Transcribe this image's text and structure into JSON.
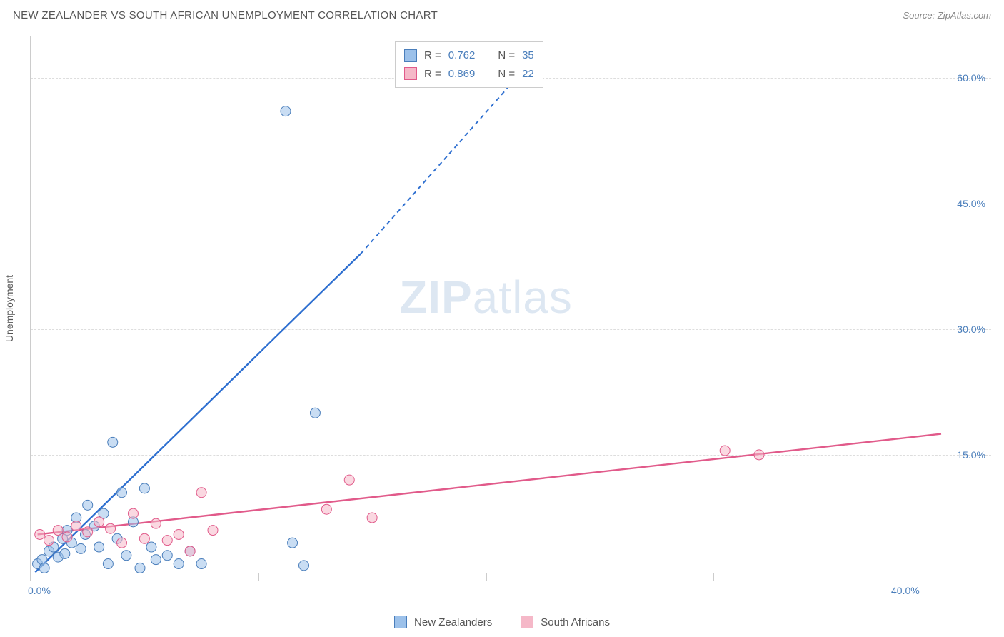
{
  "title": "NEW ZEALANDER VS SOUTH AFRICAN UNEMPLOYMENT CORRELATION CHART",
  "source": "Source: ZipAtlas.com",
  "ylabel": "Unemployment",
  "watermark_zip": "ZIP",
  "watermark_atlas": "atlas",
  "chart": {
    "type": "scatter",
    "xlim": [
      0,
      40
    ],
    "ylim": [
      0,
      65
    ],
    "x_ticks": [
      {
        "v": 0,
        "label": "0.0%"
      },
      {
        "v": 40,
        "label": "40.0%"
      }
    ],
    "y_ticks": [
      {
        "v": 15,
        "label": "15.0%"
      },
      {
        "v": 30,
        "label": "30.0%"
      },
      {
        "v": 45,
        "label": "45.0%"
      },
      {
        "v": 60,
        "label": "60.0%"
      }
    ],
    "x_grid_minor": [
      10,
      20,
      30
    ],
    "background_color": "#ffffff",
    "grid_color": "#dddddd",
    "axis_color": "#cccccc",
    "tick_label_color": "#4a7ebb",
    "marker_radius": 7,
    "marker_opacity": 0.55,
    "marker_stroke_width": 1,
    "line_width": 2.4,
    "dash_pattern": "6 5",
    "series": [
      {
        "name": "New Zealanders",
        "color_fill": "#9cc1ea",
        "color_stroke": "#4a7ebb",
        "line_color": "#2e6fd0",
        "R": "0.762",
        "N": "35",
        "points": [
          [
            0.3,
            2.0
          ],
          [
            0.5,
            2.5
          ],
          [
            0.6,
            1.5
          ],
          [
            0.8,
            3.5
          ],
          [
            1.0,
            4.0
          ],
          [
            1.2,
            2.8
          ],
          [
            1.4,
            5.0
          ],
          [
            1.5,
            3.2
          ],
          [
            1.6,
            6.0
          ],
          [
            1.8,
            4.5
          ],
          [
            2.0,
            7.5
          ],
          [
            2.2,
            3.8
          ],
          [
            2.4,
            5.5
          ],
          [
            2.5,
            9.0
          ],
          [
            2.8,
            6.5
          ],
          [
            3.0,
            4.0
          ],
          [
            3.2,
            8.0
          ],
          [
            3.4,
            2.0
          ],
          [
            3.6,
            16.5
          ],
          [
            3.8,
            5.0
          ],
          [
            4.0,
            10.5
          ],
          [
            4.2,
            3.0
          ],
          [
            4.5,
            7.0
          ],
          [
            4.8,
            1.5
          ],
          [
            5.0,
            11.0
          ],
          [
            5.3,
            4.0
          ],
          [
            5.5,
            2.5
          ],
          [
            6.0,
            3.0
          ],
          [
            6.5,
            2.0
          ],
          [
            7.0,
            3.5
          ],
          [
            7.5,
            2.0
          ],
          [
            11.2,
            56.0
          ],
          [
            12.0,
            1.8
          ],
          [
            12.5,
            20.0
          ],
          [
            11.5,
            4.5
          ]
        ],
        "trend": {
          "x1": 0.2,
          "y1": 1.0,
          "x2": 14.5,
          "y2": 39.0,
          "ext_x": 22.0,
          "ext_y": 62.0
        }
      },
      {
        "name": "South Africans",
        "color_fill": "#f5b8c8",
        "color_stroke": "#e15a8a",
        "line_color": "#e15a8a",
        "R": "0.869",
        "N": "22",
        "points": [
          [
            0.4,
            5.5
          ],
          [
            0.8,
            4.8
          ],
          [
            1.2,
            6.0
          ],
          [
            1.6,
            5.2
          ],
          [
            2.0,
            6.5
          ],
          [
            2.5,
            5.8
          ],
          [
            3.0,
            7.0
          ],
          [
            3.5,
            6.2
          ],
          [
            4.0,
            4.5
          ],
          [
            4.5,
            8.0
          ],
          [
            5.0,
            5.0
          ],
          [
            5.5,
            6.8
          ],
          [
            6.0,
            4.8
          ],
          [
            6.5,
            5.5
          ],
          [
            7.0,
            3.5
          ],
          [
            7.5,
            10.5
          ],
          [
            8.0,
            6.0
          ],
          [
            13.0,
            8.5
          ],
          [
            14.0,
            12.0
          ],
          [
            15.0,
            7.5
          ],
          [
            30.5,
            15.5
          ],
          [
            32.0,
            15.0
          ]
        ],
        "trend": {
          "x1": 0.3,
          "y1": 5.5,
          "x2": 40.0,
          "y2": 17.5,
          "ext_x": 40.0,
          "ext_y": 17.5
        }
      }
    ]
  },
  "legend_stats_header": {
    "r_label": "R =",
    "n_label": "N ="
  }
}
